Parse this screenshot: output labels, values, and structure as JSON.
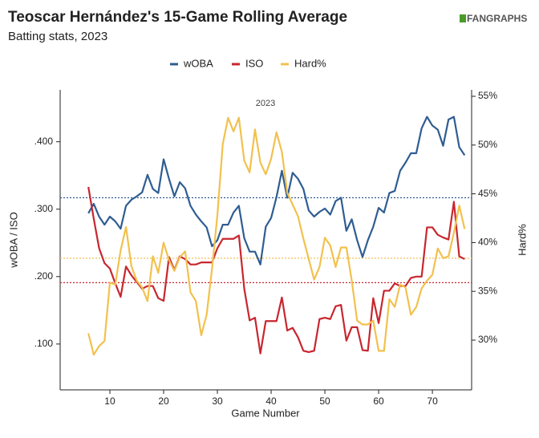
{
  "chart_data": {
    "type": "line",
    "title": "Teoscar Hernández's 15-Game Rolling Average",
    "subtitle": "Batting stats, 2023",
    "logo": "FANGRAPHS",
    "annotation": "2023",
    "xlabel": "Game Number",
    "ylabel": "wOBA / ISO",
    "y2label": "Hard%",
    "x": [
      6,
      7,
      8,
      9,
      10,
      11,
      12,
      13,
      14,
      15,
      16,
      17,
      18,
      19,
      20,
      21,
      22,
      23,
      24,
      25,
      26,
      27,
      28,
      29,
      30,
      31,
      32,
      33,
      34,
      35,
      36,
      37,
      38,
      39,
      40,
      41,
      42,
      43,
      44,
      45,
      46,
      47,
      48,
      49,
      50,
      51,
      52,
      53,
      54,
      55,
      56,
      57,
      58,
      59,
      60,
      61,
      62,
      63,
      64,
      65,
      66,
      67,
      68,
      69,
      70,
      71,
      72,
      73,
      74,
      75,
      76
    ],
    "xlim": [
      0.75,
      77.3
    ],
    "xticks": [
      10,
      20,
      30,
      40,
      50,
      60,
      70
    ],
    "ylim": [
      0.032,
      0.477
    ],
    "yticks": [
      {
        "value": 0.1,
        "label": ".100"
      },
      {
        "value": 0.2,
        "label": ".200"
      },
      {
        "value": 0.3,
        "label": ".300"
      },
      {
        "value": 0.4,
        "label": ".400"
      }
    ],
    "y2lim": [
      24.9,
      55.66
    ],
    "y2ticks": [
      {
        "value": 30,
        "label": "30%"
      },
      {
        "value": 35,
        "label": "35%"
      },
      {
        "value": 40,
        "label": "40%"
      },
      {
        "value": 45,
        "label": "45%"
      },
      {
        "value": 50,
        "label": "50%"
      },
      {
        "value": 55,
        "label": "55%"
      }
    ],
    "hlines": [
      {
        "value": 0.317,
        "color": "#2f5d92",
        "axis": "y"
      },
      {
        "value": 0.191,
        "color": "#c8262f",
        "axis": "y"
      },
      {
        "value": 38.4,
        "color": "#f2c14e",
        "axis": "y2"
      }
    ],
    "series": [
      {
        "name": "wOBA",
        "color": "#2f5d92",
        "axis": "y",
        "values": [
          0.294,
          0.308,
          0.289,
          0.277,
          0.289,
          0.282,
          0.271,
          0.305,
          0.314,
          0.319,
          0.325,
          0.351,
          0.33,
          0.324,
          0.374,
          0.345,
          0.319,
          0.34,
          0.331,
          0.305,
          0.292,
          0.282,
          0.273,
          0.245,
          0.254,
          0.277,
          0.277,
          0.295,
          0.305,
          0.257,
          0.237,
          0.237,
          0.218,
          0.274,
          0.287,
          0.318,
          0.357,
          0.317,
          0.354,
          0.345,
          0.33,
          0.298,
          0.289,
          0.296,
          0.301,
          0.292,
          0.312,
          0.317,
          0.268,
          0.285,
          0.254,
          0.229,
          0.254,
          0.274,
          0.302,
          0.295,
          0.324,
          0.327,
          0.357,
          0.369,
          0.383,
          0.383,
          0.42,
          0.437,
          0.424,
          0.418,
          0.394,
          0.433,
          0.437,
          0.392,
          0.38
        ]
      },
      {
        "name": "ISO",
        "color": "#c8262f",
        "axis": "y",
        "values": [
          0.333,
          0.286,
          0.242,
          0.22,
          0.212,
          0.19,
          0.17,
          0.215,
          0.202,
          0.192,
          0.182,
          0.186,
          0.186,
          0.168,
          0.164,
          0.229,
          0.21,
          0.23,
          0.226,
          0.218,
          0.218,
          0.221,
          0.221,
          0.221,
          0.242,
          0.256,
          0.256,
          0.256,
          0.261,
          0.182,
          0.135,
          0.139,
          0.086,
          0.134,
          0.134,
          0.134,
          0.169,
          0.12,
          0.124,
          0.11,
          0.09,
          0.088,
          0.09,
          0.137,
          0.139,
          0.137,
          0.156,
          0.158,
          0.105,
          0.125,
          0.125,
          0.091,
          0.09,
          0.168,
          0.131,
          0.179,
          0.179,
          0.19,
          0.186,
          0.186,
          0.198,
          0.2,
          0.2,
          0.273,
          0.273,
          0.262,
          0.258,
          0.255,
          0.311,
          0.23,
          0.226
        ]
      },
      {
        "name": "Hard%",
        "color": "#f2c14e",
        "axis": "y2",
        "values": [
          30.7,
          28.5,
          29.4,
          29.9,
          35.9,
          35.7,
          39.2,
          41.6,
          37.6,
          36.1,
          35.4,
          34.0,
          38.6,
          36.9,
          40.0,
          38.2,
          37.1,
          38.5,
          39.1,
          34.9,
          34.0,
          30.5,
          32.6,
          37.3,
          42.8,
          50.1,
          52.8,
          51.4,
          52.8,
          48.4,
          47.2,
          51.6,
          48.2,
          47.0,
          48.6,
          51.3,
          49.3,
          45.1,
          43.9,
          42.7,
          40.4,
          38.3,
          36.2,
          37.5,
          40.5,
          39.7,
          37.5,
          39.5,
          39.5,
          36.1,
          32.0,
          31.6,
          31.6,
          32.0,
          28.9,
          28.9,
          34.2,
          33.4,
          35.7,
          35.4,
          32.6,
          33.4,
          35.3,
          36.1,
          36.7,
          39.4,
          38.4,
          38.6,
          41.0,
          43.8,
          41.4
        ]
      }
    ]
  }
}
